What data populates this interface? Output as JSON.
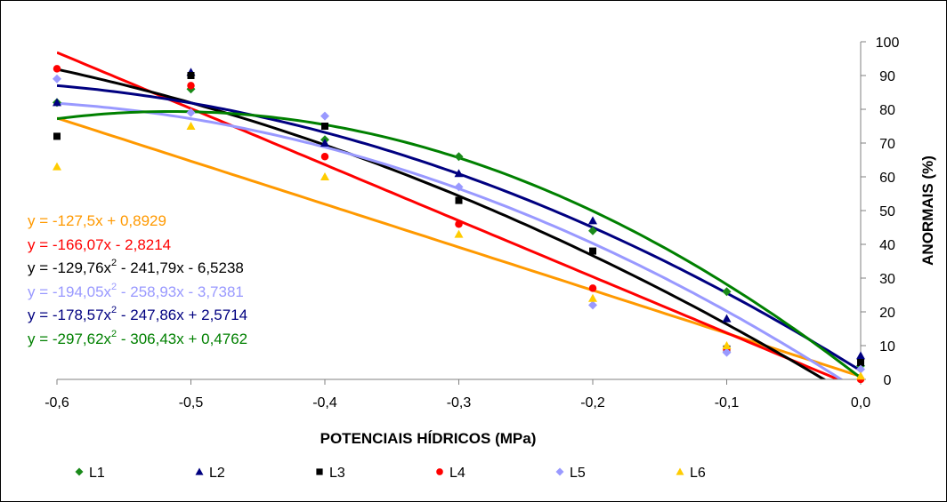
{
  "chart_data": {
    "type": "scatter",
    "title": "",
    "xlabel": "POTENCIAIS HÍDRICOS (MPa)",
    "ylabel": "ANORMAIS (%)",
    "xlim": [
      -0.6,
      0.0
    ],
    "ylim": [
      0,
      100
    ],
    "x_ticks": [
      "-0,6",
      "-0,5",
      "-0,4",
      "-0,3",
      "-0,2",
      "-0,1",
      "0,0"
    ],
    "y_ticks": [
      "0",
      "10",
      "20",
      "30",
      "40",
      "50",
      "60",
      "70",
      "80",
      "90",
      "100"
    ],
    "grid": false,
    "legend_position": "bottom",
    "x": [
      -0.6,
      -0.5,
      -0.4,
      -0.3,
      -0.2,
      -0.1,
      0.0
    ],
    "series": [
      {
        "name": "L1",
        "marker": "diamond",
        "color": "#1a8a1a",
        "values": [
          82,
          86,
          71,
          66,
          44,
          26,
          4
        ]
      },
      {
        "name": "L2",
        "marker": "triangle",
        "color": "#000080",
        "values": [
          82,
          91,
          70,
          61,
          47,
          18,
          7
        ]
      },
      {
        "name": "L3",
        "marker": "square",
        "color": "#000000",
        "values": [
          72,
          90,
          75,
          53,
          38,
          9,
          5
        ]
      },
      {
        "name": "L4",
        "marker": "circle",
        "color": "#ff0000",
        "values": [
          92,
          87,
          66,
          46,
          27,
          9,
          0
        ]
      },
      {
        "name": "L5",
        "marker": "diamond",
        "color": "#9999ff",
        "values": [
          89,
          79,
          78,
          57,
          22,
          8,
          3
        ]
      },
      {
        "name": "L6",
        "marker": "triangle",
        "color": "#ffcc00",
        "values": [
          63,
          75,
          60,
          43,
          24,
          10,
          1
        ]
      }
    ],
    "trendlines": [
      {
        "series": "L6",
        "type": "linear",
        "color": "#ff9900",
        "a": -127.5,
        "b": 0.8929,
        "equation_parts": [
          "y = -127,5x + 0,8929"
        ]
      },
      {
        "series": "L4",
        "type": "linear",
        "color": "#ff0000",
        "a": -166.07,
        "b": -2.8214,
        "equation_parts": [
          "y = -166,07x - 2,8214"
        ]
      },
      {
        "series": "L3",
        "type": "poly2",
        "color": "#000000",
        "c2": -129.76,
        "c1": -241.79,
        "c0": -6.5238,
        "equation_parts": [
          "y = -129,76x",
          "2",
          " - 241,79x - 6,5238"
        ]
      },
      {
        "series": "L5",
        "type": "poly2",
        "color": "#9999ff",
        "c2": -194.05,
        "c1": -258.93,
        "c0": -3.7381,
        "equation_parts": [
          "y = -194,05x",
          "2",
          " - 258,93x - 3,7381"
        ]
      },
      {
        "series": "L2",
        "type": "poly2",
        "color": "#000080",
        "c2": -178.57,
        "c1": -247.86,
        "c0": 2.5714,
        "equation_parts": [
          "y = -178,57x",
          "2",
          " - 247,86x + 2,5714"
        ]
      },
      {
        "series": "L1",
        "type": "poly2",
        "color": "#008000",
        "c2": -297.62,
        "c1": -306.43,
        "c0": 0.4762,
        "equation_parts": [
          "y = -297,62x",
          "2",
          " - 306,43x + 0,4762"
        ]
      }
    ]
  }
}
